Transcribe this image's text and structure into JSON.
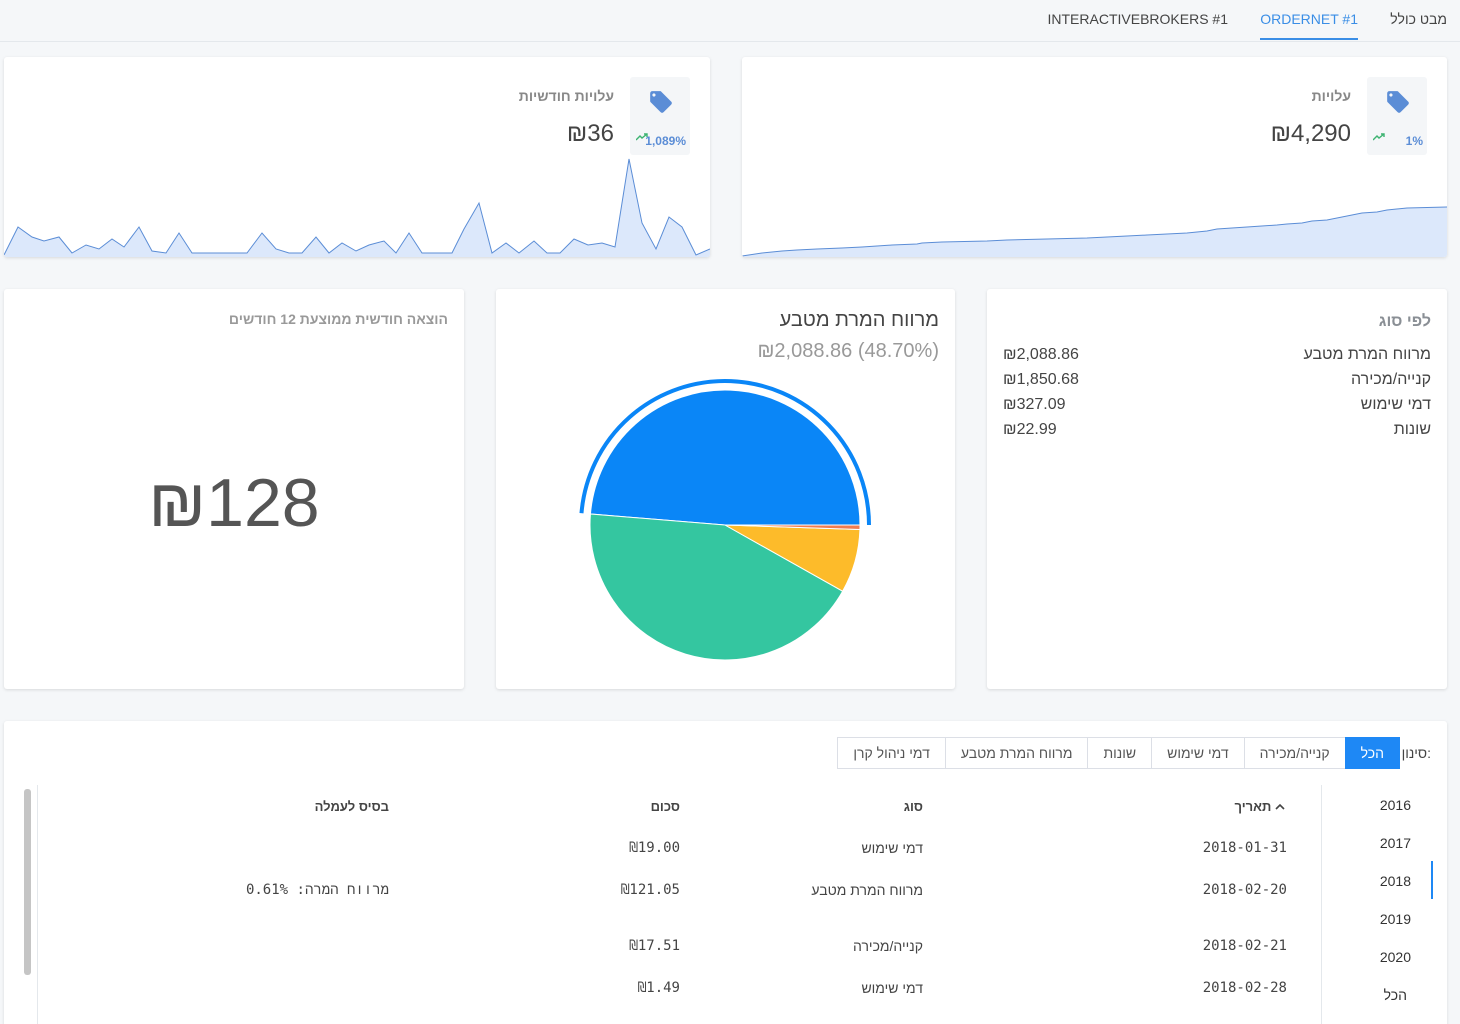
{
  "tabs": [
    {
      "label": "מבט כולל"
    },
    {
      "label": "ORDERNET #1"
    },
    {
      "label": "INTERACTIVEBROKERS #1"
    }
  ],
  "costs_card": {
    "label": "עלויות",
    "value": "₪4,290",
    "pct": "1%"
  },
  "monthly_card": {
    "label": "עלויות חודשיות",
    "value": "₪36",
    "pct": "1,089%"
  },
  "by_type": {
    "title": "לפי סוג",
    "rows": [
      {
        "name": "מרווח המרת מטבע",
        "amount": "₪2,088.86"
      },
      {
        "name": "קנייה/מכירה",
        "amount": "₪1,850.68"
      },
      {
        "name": "דמי שימוש",
        "amount": "₪327.09"
      },
      {
        "name": "שונות",
        "amount": "₪22.99"
      }
    ]
  },
  "pie": {
    "title": "מרווח המרת מטבע",
    "subtitle": "₪2,088.86 (48.70%)"
  },
  "chart_data": {
    "type": "pie",
    "title": "מרווח המרת מטבע",
    "slices": [
      {
        "label": "מרווח המרת מטבע",
        "value": 2088.86,
        "color": "#0a86f7"
      },
      {
        "label": "קנייה/מכירה",
        "value": 1850.68,
        "color": "#34c6a0"
      },
      {
        "label": "דמי שימוש",
        "value": 327.09,
        "color": "#fdbb2a"
      },
      {
        "label": "שונות",
        "value": 22.99,
        "color": "#f07c50"
      }
    ]
  },
  "avg_card": {
    "title": "הוצאה חודשית ממוצעת 12 חודשים",
    "value": "₪128"
  },
  "filters": {
    "label": "סינון:",
    "buttons": [
      "הכל",
      "קנייה/מכירה",
      "דמי שימוש",
      "שונות",
      "מרווח המרת מטבע",
      "דמי ניהול קרן"
    ]
  },
  "years": [
    "2016",
    "2017",
    "2018",
    "2019",
    "2020",
    "הכל"
  ],
  "table": {
    "headers": {
      "date": "תאריך",
      "type": "סוג",
      "amount": "סכום",
      "basis": "בסיס לעמלה"
    },
    "rows": [
      {
        "date": "2018-01-31",
        "type": "דמי שימוש",
        "amount": "₪19.00",
        "basis": ""
      },
      {
        "date": "2018-02-20",
        "type": "מרווח המרת מטבע",
        "amount": "₪121.05",
        "basis": "מרווח המרה: 0.61%"
      },
      {
        "date": "2018-02-21",
        "type": "קנייה/מכירה",
        "amount": "₪17.51",
        "basis": ""
      },
      {
        "date": "2018-02-28",
        "type": "דמי שימוש",
        "amount": "₪1.49",
        "basis": ""
      }
    ]
  },
  "colors": {
    "accent": "#1e88f5",
    "spark_fill": "#dce8fb",
    "spark_line": "#5b8dd6"
  }
}
